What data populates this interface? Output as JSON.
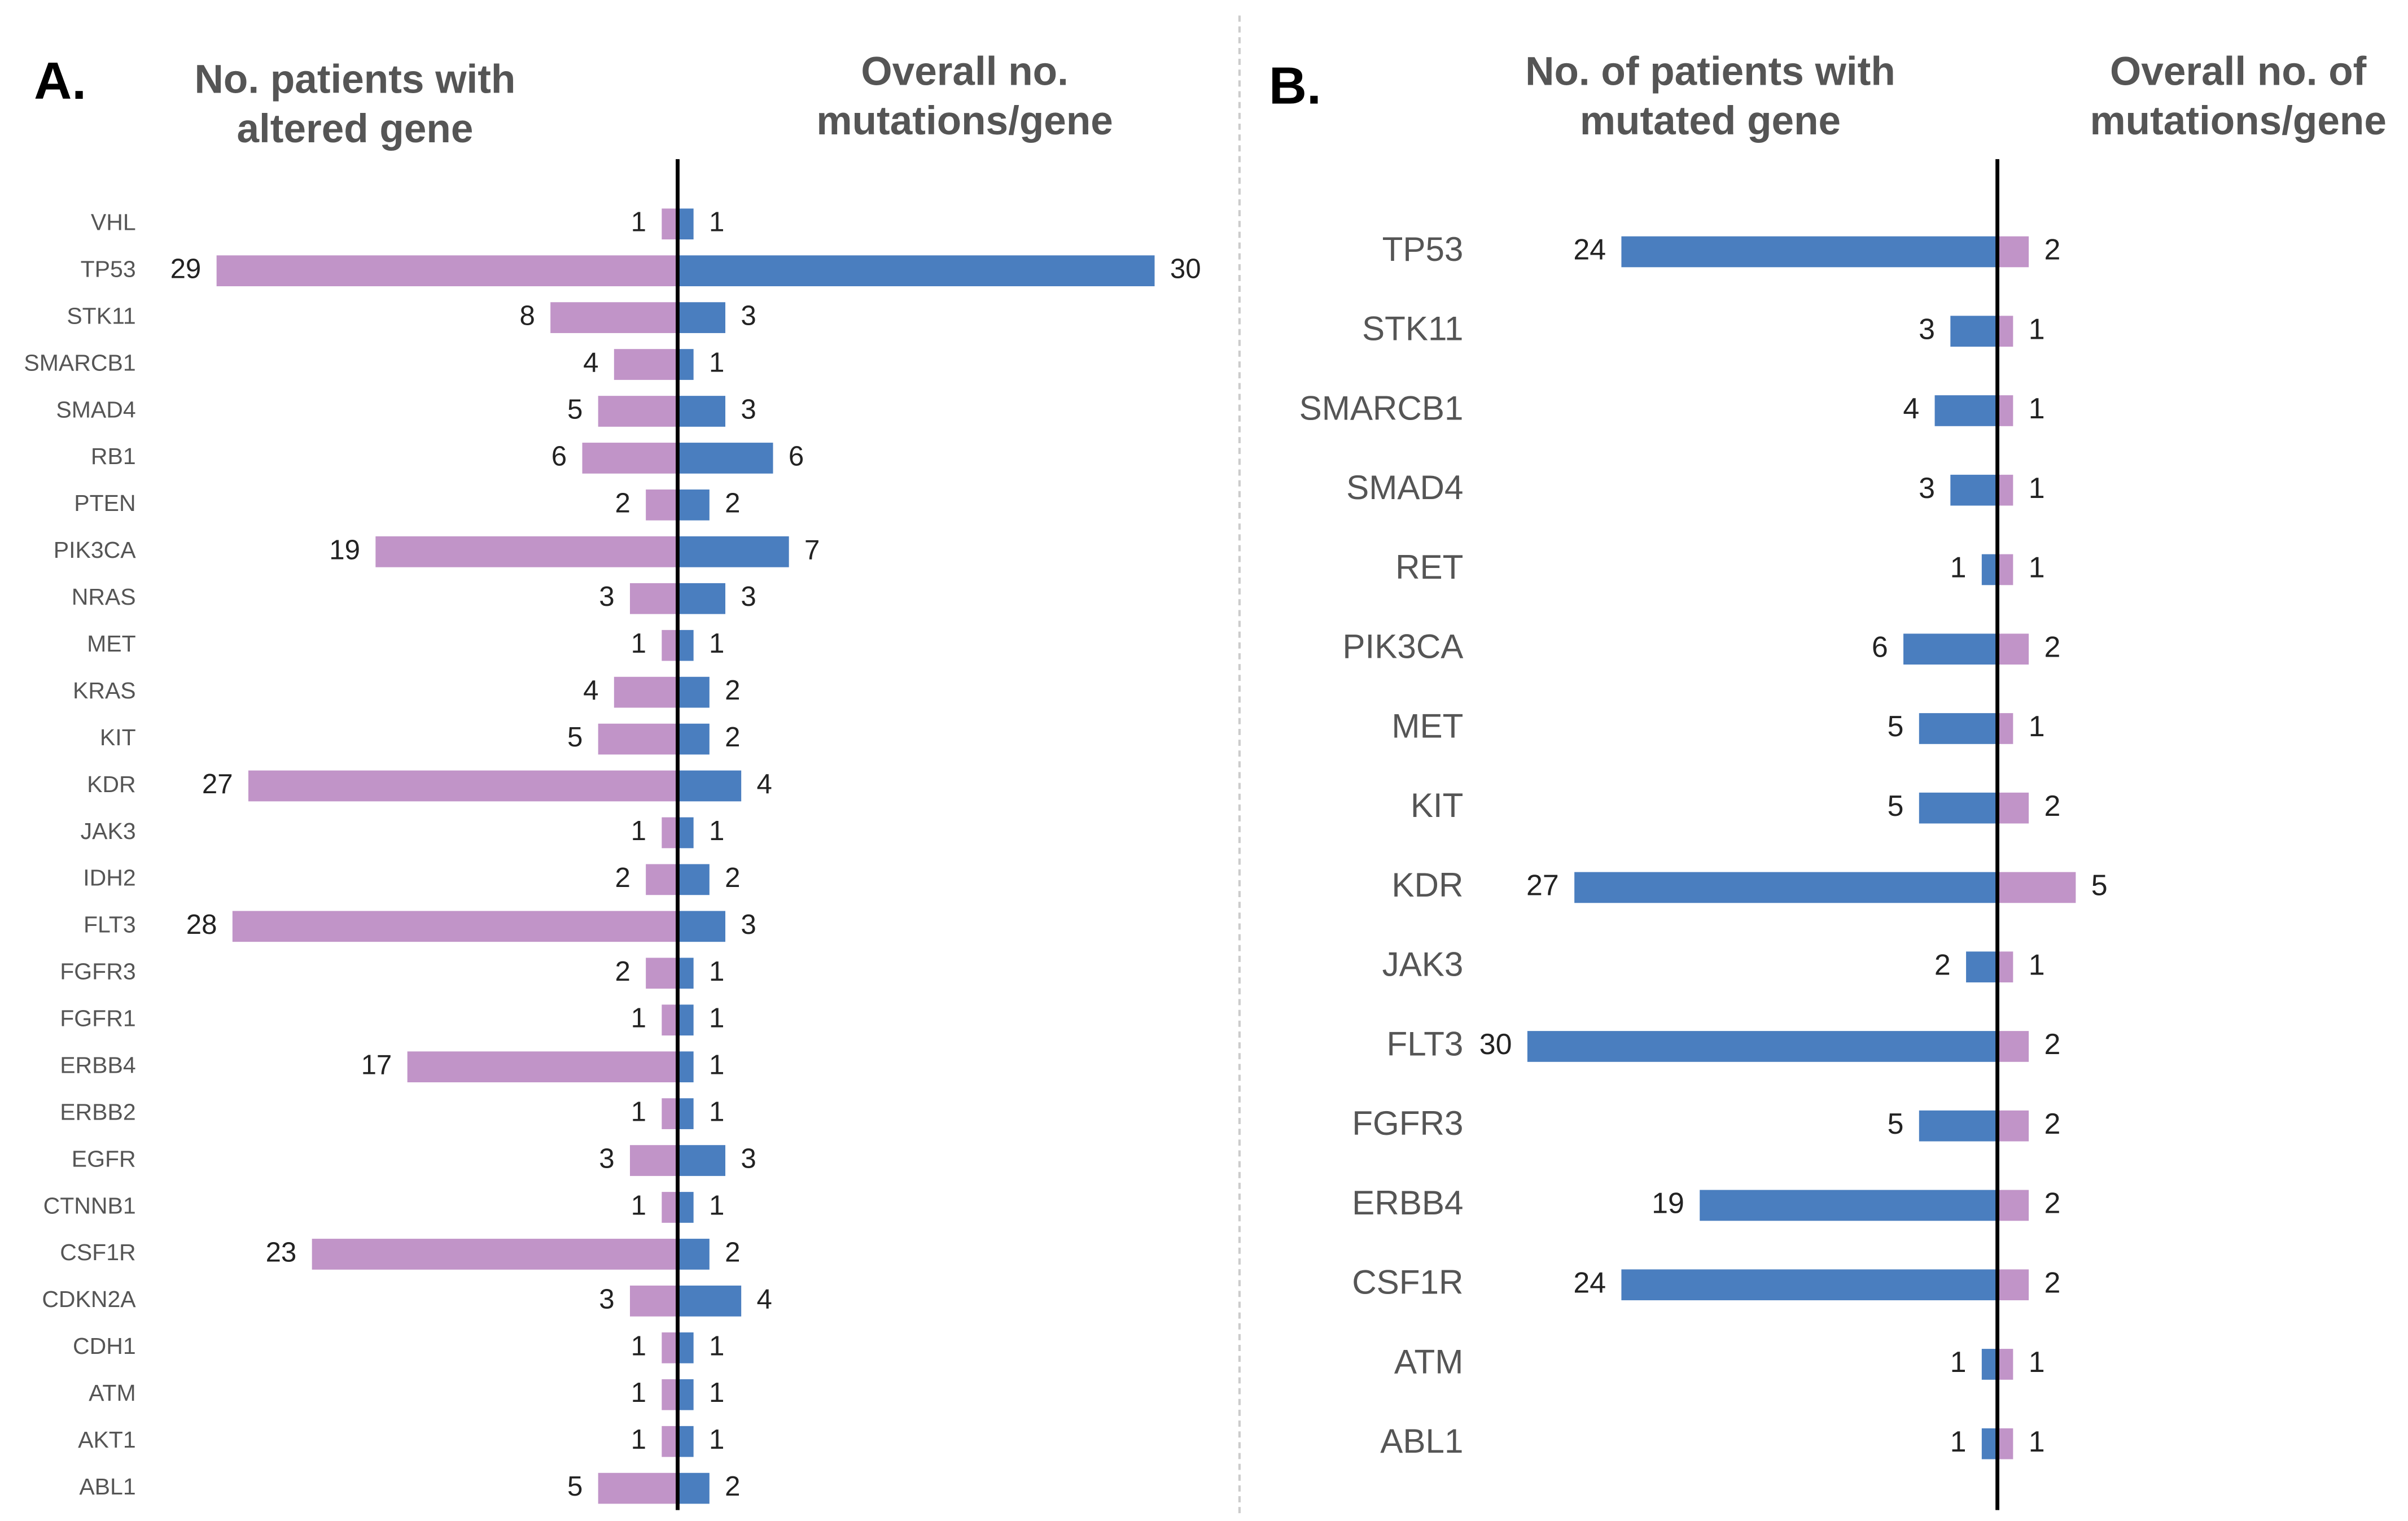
{
  "chart_data": [
    {
      "type": "bar",
      "title": "A.",
      "categories": [
        "VHL",
        "TP53",
        "STK11",
        "SMARCB1",
        "SMAD4",
        "RB1",
        "PTEN",
        "PIK3CA",
        "NRAS",
        "MET",
        "KRAS",
        "KIT",
        "KDR",
        "JAK3",
        "IDH2",
        "FLT3",
        "FGFR3",
        "FGFR1",
        "ERBB4",
        "ERBB2",
        "EGFR",
        "CTNNB1",
        "CSF1R",
        "CDKN2A",
        "CDH1",
        "ATM",
        "AKT1",
        "ABL1"
      ],
      "series": [
        {
          "name": "No. patients with altered gene",
          "color": "#c194c8",
          "values": [
            1,
            29,
            8,
            4,
            5,
            6,
            2,
            19,
            3,
            1,
            4,
            5,
            27,
            1,
            2,
            28,
            2,
            1,
            17,
            1,
            3,
            1,
            23,
            3,
            1,
            1,
            1,
            5
          ]
        },
        {
          "name": "Overall no. mutations/gene",
          "color": "#4a7ebf",
          "values": [
            1,
            30,
            3,
            1,
            3,
            6,
            2,
            7,
            3,
            1,
            2,
            2,
            4,
            1,
            2,
            3,
            1,
            1,
            1,
            1,
            3,
            1,
            2,
            4,
            1,
            1,
            1,
            2
          ]
        }
      ]
    },
    {
      "type": "bar",
      "title": "B.",
      "categories": [
        "TP53",
        "STK11",
        "SMARCB1",
        "SMAD4",
        "RET",
        "PIK3CA",
        "MET",
        "KIT",
        "KDR",
        "JAK3",
        "FLT3",
        "FGFR3",
        "ERBB4",
        "CSF1R",
        "ATM",
        "ABL1"
      ],
      "series": [
        {
          "name": "No. of patients with mutated gene",
          "color": "#4a7ebf",
          "values": [
            24,
            3,
            4,
            3,
            1,
            6,
            5,
            5,
            27,
            2,
            30,
            5,
            19,
            24,
            1,
            1
          ]
        },
        {
          "name": "Overall no. of mutations/gene",
          "color": "#c194c8",
          "values": [
            2,
            1,
            1,
            1,
            1,
            2,
            1,
            2,
            5,
            1,
            2,
            2,
            2,
            2,
            1,
            1
          ]
        }
      ]
    }
  ]
}
